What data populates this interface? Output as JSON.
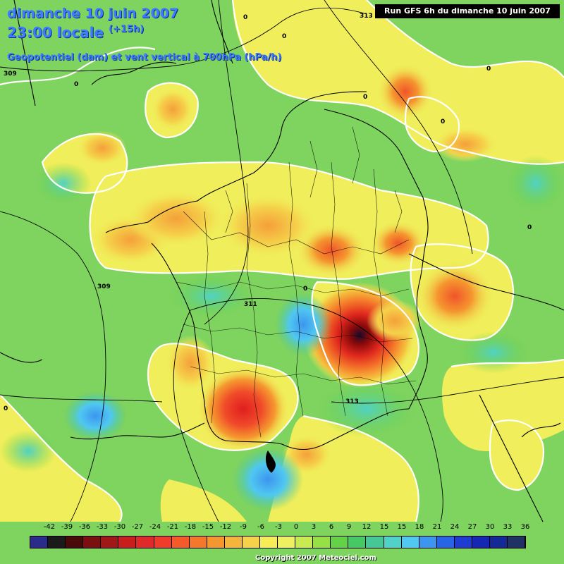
{
  "header": {
    "date_line": "dimanche 10 juin 2007",
    "time_line": "23:00 locale",
    "time_offset": "(+15h)",
    "field_title": "Geopotentiel (dam) et vent vertical à 700hPa (hPa/h)",
    "run_info": "Run GFS 6h du dimanche 10 juin 2007"
  },
  "contour_labels": [
    "313",
    "0",
    "0",
    "309",
    "0",
    "0",
    "0",
    "0",
    "0",
    "309",
    "311",
    "0",
    "313",
    "0"
  ],
  "legend": {
    "labels": [
      "-42",
      "-39",
      "-36",
      "-33",
      "-30",
      "-27",
      "-24",
      "-21",
      "-18",
      "-15",
      "-12",
      "-9",
      "-6",
      "-3",
      "0",
      "3",
      "6",
      "9",
      "12",
      "15",
      "15",
      "18",
      "21",
      "24",
      "27",
      "30",
      "33",
      "36"
    ],
    "colors": [
      "#2b2b8c",
      "#1a1a1a",
      "#4a0a0a",
      "#7a1010",
      "#a01818",
      "#c81e1e",
      "#e02a2a",
      "#f03c2a",
      "#f55a2a",
      "#f5782a",
      "#f5962f",
      "#f5b43a",
      "#f5d24a",
      "#f5ec58",
      "#eef060",
      "#c8ec50",
      "#96e046",
      "#64d246",
      "#46c864",
      "#46c896",
      "#50d2c8",
      "#50c8f0",
      "#3c96f0",
      "#2864e6",
      "#1e3cd2",
      "#1428b4",
      "#142896",
      "#1e3264"
    ]
  },
  "footer": {
    "copyright": "Copyright 2007 Meteociel.com"
  },
  "map_colors": {
    "background": "#7fd35f",
    "yellow": "#f0ee5a",
    "orange": "#f5b43a",
    "red": "#e83a2a",
    "dark_red": "#8a0a0a",
    "cyan": "#50c8f0",
    "blue": "#3c96f0",
    "contour": "#ffffff",
    "borders": "#000000"
  }
}
